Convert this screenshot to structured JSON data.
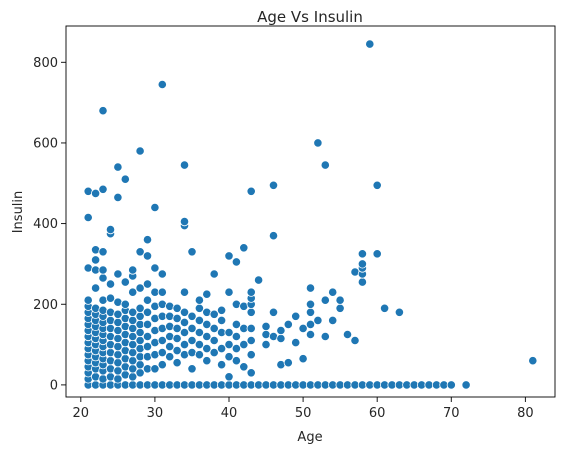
{
  "chart_data": {
    "type": "scatter",
    "title": "Age Vs Insulin",
    "xlabel": "Age",
    "ylabel": "Insulin",
    "xlim": [
      18,
      84
    ],
    "ylim": [
      -30,
      890
    ],
    "xticks": [
      20,
      30,
      40,
      50,
      60,
      70,
      80
    ],
    "yticks": [
      0,
      200,
      400,
      600,
      800
    ],
    "grid": false,
    "legend": "none",
    "color": "#1f77b4",
    "series": [
      {
        "points": [
          [
            21,
            0
          ],
          [
            22,
            0
          ],
          [
            23,
            0
          ],
          [
            24,
            0
          ],
          [
            25,
            0
          ],
          [
            26,
            0
          ],
          [
            27,
            0
          ],
          [
            28,
            0
          ],
          [
            29,
            0
          ],
          [
            30,
            0
          ],
          [
            31,
            0
          ],
          [
            32,
            0
          ],
          [
            33,
            0
          ],
          [
            34,
            0
          ],
          [
            35,
            0
          ],
          [
            36,
            0
          ],
          [
            37,
            0
          ],
          [
            38,
            0
          ],
          [
            39,
            0
          ],
          [
            40,
            0
          ],
          [
            41,
            0
          ],
          [
            42,
            0
          ],
          [
            43,
            0
          ],
          [
            44,
            0
          ],
          [
            45,
            0
          ],
          [
            46,
            0
          ],
          [
            47,
            0
          ],
          [
            48,
            0
          ],
          [
            49,
            0
          ],
          [
            50,
            0
          ],
          [
            51,
            0
          ],
          [
            52,
            0
          ],
          [
            53,
            0
          ],
          [
            54,
            0
          ],
          [
            55,
            0
          ],
          [
            56,
            0
          ],
          [
            57,
            0
          ],
          [
            58,
            0
          ],
          [
            59,
            0
          ],
          [
            60,
            0
          ],
          [
            61,
            0
          ],
          [
            62,
            0
          ],
          [
            63,
            0
          ],
          [
            64,
            0
          ],
          [
            65,
            0
          ],
          [
            66,
            0
          ],
          [
            67,
            0
          ],
          [
            68,
            0
          ],
          [
            69,
            0
          ],
          [
            70,
            0
          ],
          [
            72,
            0
          ],
          [
            81,
            60
          ],
          [
            21,
            15
          ],
          [
            21,
            30
          ],
          [
            21,
            45
          ],
          [
            21,
            60
          ],
          [
            21,
            75
          ],
          [
            21,
            90
          ],
          [
            21,
            105
          ],
          [
            21,
            120
          ],
          [
            21,
            135
          ],
          [
            21,
            150
          ],
          [
            21,
            165
          ],
          [
            21,
            180
          ],
          [
            21,
            195
          ],
          [
            21,
            210
          ],
          [
            21,
            290
          ],
          [
            21,
            415
          ],
          [
            21,
            480
          ],
          [
            22,
            20
          ],
          [
            22,
            40
          ],
          [
            22,
            55
          ],
          [
            22,
            70
          ],
          [
            22,
            85
          ],
          [
            22,
            100
          ],
          [
            22,
            115
          ],
          [
            22,
            130
          ],
          [
            22,
            145
          ],
          [
            22,
            160
          ],
          [
            22,
            175
          ],
          [
            22,
            190
          ],
          [
            22,
            240
          ],
          [
            22,
            285
          ],
          [
            22,
            310
          ],
          [
            22,
            335
          ],
          [
            22,
            475
          ],
          [
            23,
            15
          ],
          [
            23,
            35
          ],
          [
            23,
            50
          ],
          [
            23,
            65
          ],
          [
            23,
            80
          ],
          [
            23,
            95
          ],
          [
            23,
            110
          ],
          [
            23,
            125
          ],
          [
            23,
            140
          ],
          [
            23,
            155
          ],
          [
            23,
            170
          ],
          [
            23,
            185
          ],
          [
            23,
            210
          ],
          [
            23,
            265
          ],
          [
            23,
            285
          ],
          [
            23,
            330
          ],
          [
            23,
            485
          ],
          [
            23,
            680
          ],
          [
            24,
            20
          ],
          [
            24,
            40
          ],
          [
            24,
            60
          ],
          [
            24,
            80
          ],
          [
            24,
            100
          ],
          [
            24,
            120
          ],
          [
            24,
            140
          ],
          [
            24,
            160
          ],
          [
            24,
            180
          ],
          [
            24,
            215
          ],
          [
            24,
            250
          ],
          [
            24,
            375
          ],
          [
            24,
            385
          ],
          [
            25,
            15
          ],
          [
            25,
            35
          ],
          [
            25,
            55
          ],
          [
            25,
            75
          ],
          [
            25,
            95
          ],
          [
            25,
            115
          ],
          [
            25,
            135
          ],
          [
            25,
            155
          ],
          [
            25,
            175
          ],
          [
            25,
            205
          ],
          [
            25,
            275
          ],
          [
            25,
            465
          ],
          [
            25,
            540
          ],
          [
            26,
            25
          ],
          [
            26,
            45
          ],
          [
            26,
            65
          ],
          [
            26,
            85
          ],
          [
            26,
            105
          ],
          [
            26,
            125
          ],
          [
            26,
            145
          ],
          [
            26,
            165
          ],
          [
            26,
            185
          ],
          [
            26,
            200
          ],
          [
            26,
            255
          ],
          [
            26,
            510
          ],
          [
            27,
            20
          ],
          [
            27,
            40
          ],
          [
            27,
            60
          ],
          [
            27,
            80
          ],
          [
            27,
            100
          ],
          [
            27,
            120
          ],
          [
            27,
            140
          ],
          [
            27,
            160
          ],
          [
            27,
            180
          ],
          [
            27,
            230
          ],
          [
            27,
            270
          ],
          [
            27,
            285
          ],
          [
            28,
            30
          ],
          [
            28,
            50
          ],
          [
            28,
            70
          ],
          [
            28,
            90
          ],
          [
            28,
            110
          ],
          [
            28,
            130
          ],
          [
            28,
            150
          ],
          [
            28,
            170
          ],
          [
            28,
            190
          ],
          [
            28,
            240
          ],
          [
            28,
            330
          ],
          [
            28,
            580
          ],
          [
            29,
            40
          ],
          [
            29,
            70
          ],
          [
            29,
            95
          ],
          [
            29,
            120
          ],
          [
            29,
            150
          ],
          [
            29,
            180
          ],
          [
            29,
            210
          ],
          [
            29,
            250
          ],
          [
            29,
            320
          ],
          [
            29,
            360
          ],
          [
            30,
            40
          ],
          [
            30,
            75
          ],
          [
            30,
            105
          ],
          [
            30,
            135
          ],
          [
            30,
            165
          ],
          [
            30,
            195
          ],
          [
            30,
            230
          ],
          [
            30,
            290
          ],
          [
            30,
            440
          ],
          [
            31,
            50
          ],
          [
            31,
            80
          ],
          [
            31,
            110
          ],
          [
            31,
            140
          ],
          [
            31,
            170
          ],
          [
            31,
            200
          ],
          [
            31,
            230
          ],
          [
            31,
            275
          ],
          [
            31,
            745
          ],
          [
            32,
            70
          ],
          [
            32,
            95
          ],
          [
            32,
            120
          ],
          [
            32,
            145
          ],
          [
            32,
            170
          ],
          [
            32,
            195
          ],
          [
            33,
            55
          ],
          [
            33,
            85
          ],
          [
            33,
            115
          ],
          [
            33,
            140
          ],
          [
            33,
            165
          ],
          [
            33,
            190
          ],
          [
            34,
            75
          ],
          [
            34,
            100
          ],
          [
            34,
            130
          ],
          [
            34,
            155
          ],
          [
            34,
            180
          ],
          [
            34,
            230
          ],
          [
            34,
            395
          ],
          [
            34,
            405
          ],
          [
            34,
            545
          ],
          [
            35,
            40
          ],
          [
            35,
            80
          ],
          [
            35,
            110
          ],
          [
            35,
            140
          ],
          [
            35,
            170
          ],
          [
            35,
            330
          ],
          [
            36,
            75
          ],
          [
            36,
            100
          ],
          [
            36,
            130
          ],
          [
            36,
            160
          ],
          [
            36,
            190
          ],
          [
            36,
            210
          ],
          [
            37,
            60
          ],
          [
            37,
            90
          ],
          [
            37,
            120
          ],
          [
            37,
            150
          ],
          [
            37,
            180
          ],
          [
            37,
            225
          ],
          [
            38,
            80
          ],
          [
            38,
            110
          ],
          [
            38,
            140
          ],
          [
            38,
            175
          ],
          [
            38,
            275
          ],
          [
            39,
            50
          ],
          [
            39,
            90
          ],
          [
            39,
            130
          ],
          [
            39,
            160
          ],
          [
            39,
            185
          ],
          [
            40,
            20
          ],
          [
            40,
            70
          ],
          [
            40,
            100
          ],
          [
            40,
            130
          ],
          [
            40,
            230
          ],
          [
            40,
            320
          ],
          [
            41,
            60
          ],
          [
            41,
            90
          ],
          [
            41,
            120
          ],
          [
            41,
            150
          ],
          [
            41,
            200
          ],
          [
            41,
            305
          ],
          [
            42,
            45
          ],
          [
            42,
            100
          ],
          [
            42,
            140
          ],
          [
            42,
            195
          ],
          [
            42,
            340
          ],
          [
            43,
            30
          ],
          [
            43,
            75
          ],
          [
            43,
            110
          ],
          [
            43,
            140
          ],
          [
            43,
            180
          ],
          [
            43,
            200
          ],
          [
            43,
            215
          ],
          [
            43,
            230
          ],
          [
            43,
            480
          ],
          [
            44,
            260
          ],
          [
            45,
            100
          ],
          [
            45,
            125
          ],
          [
            45,
            145
          ],
          [
            46,
            120
          ],
          [
            46,
            180
          ],
          [
            46,
            370
          ],
          [
            46,
            495
          ],
          [
            47,
            50
          ],
          [
            47,
            115
          ],
          [
            47,
            135
          ],
          [
            48,
            55
          ],
          [
            48,
            150
          ],
          [
            49,
            105
          ],
          [
            49,
            170
          ],
          [
            50,
            65
          ],
          [
            50,
            140
          ],
          [
            51,
            125
          ],
          [
            51,
            150
          ],
          [
            51,
            180
          ],
          [
            51,
            200
          ],
          [
            51,
            240
          ],
          [
            52,
            160
          ],
          [
            52,
            600
          ],
          [
            53,
            120
          ],
          [
            53,
            210
          ],
          [
            53,
            545
          ],
          [
            54,
            230
          ],
          [
            54,
            160
          ],
          [
            55,
            190
          ],
          [
            55,
            210
          ],
          [
            56,
            125
          ],
          [
            57,
            110
          ],
          [
            57,
            280
          ],
          [
            58,
            255
          ],
          [
            58,
            275
          ],
          [
            58,
            290
          ],
          [
            58,
            300
          ],
          [
            58,
            325
          ],
          [
            59,
            845
          ],
          [
            60,
            325
          ],
          [
            60,
            495
          ],
          [
            61,
            190
          ],
          [
            63,
            180
          ]
        ]
      }
    ]
  }
}
